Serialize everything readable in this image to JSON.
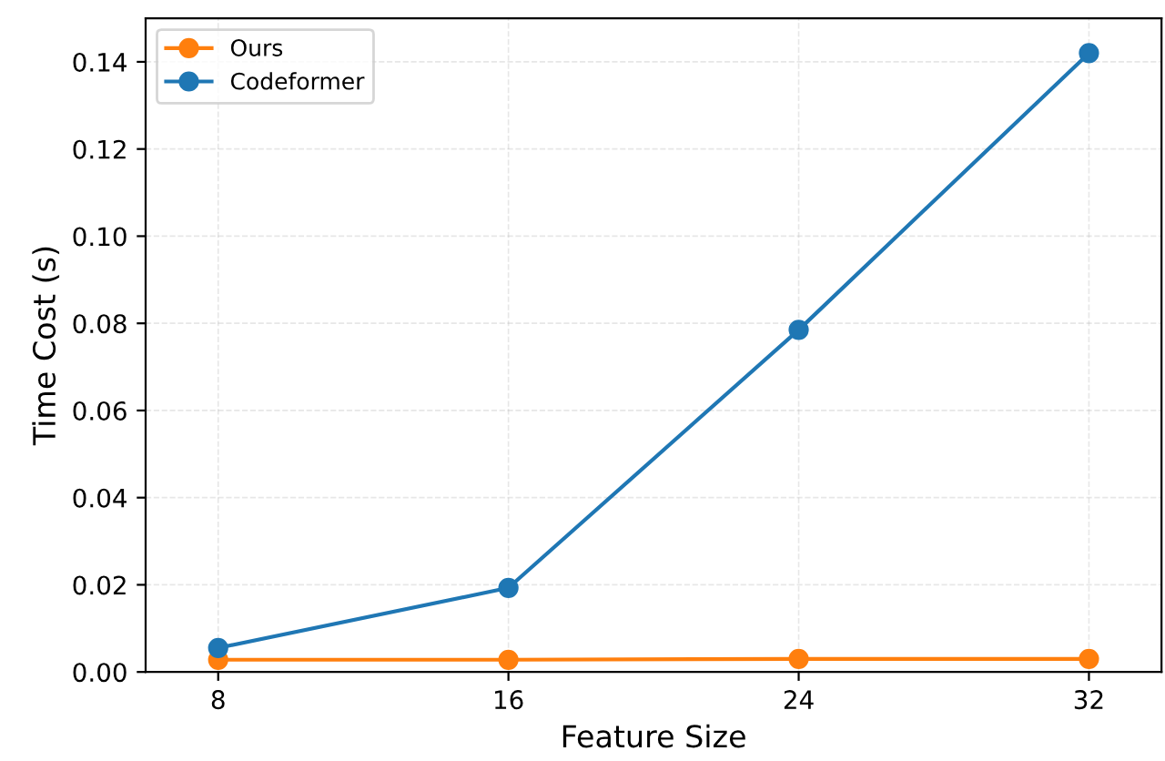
{
  "chart_data": {
    "type": "line",
    "xlabel": "Feature Size",
    "ylabel": "Time Cost (s)",
    "x": [
      8,
      16,
      24,
      32
    ],
    "series": [
      {
        "name": "Ours",
        "color": "#ff7f0e",
        "values": [
          0.0028,
          0.0028,
          0.003,
          0.003
        ]
      },
      {
        "name": "Codeformer",
        "color": "#1f77b4",
        "values": [
          0.0055,
          0.0193,
          0.0785,
          0.142
        ]
      }
    ],
    "xlim": [
      6,
      34
    ],
    "ylim": [
      0,
      0.15
    ],
    "xticks": [
      8,
      16,
      24,
      32
    ],
    "yticks": [
      {
        "value": 0,
        "label": "0.00"
      },
      {
        "value": 0.02,
        "label": "0.02"
      },
      {
        "value": 0.04,
        "label": "0.04"
      },
      {
        "value": 0.06,
        "label": "0.06"
      },
      {
        "value": 0.08,
        "label": "0.08"
      },
      {
        "value": 0.1,
        "label": "0.10"
      },
      {
        "value": 0.12,
        "label": "0.12"
      },
      {
        "value": 0.14,
        "label": "0.14"
      }
    ],
    "grid": true,
    "legend": "top left",
    "marker": "circle",
    "line_style": "solid"
  }
}
